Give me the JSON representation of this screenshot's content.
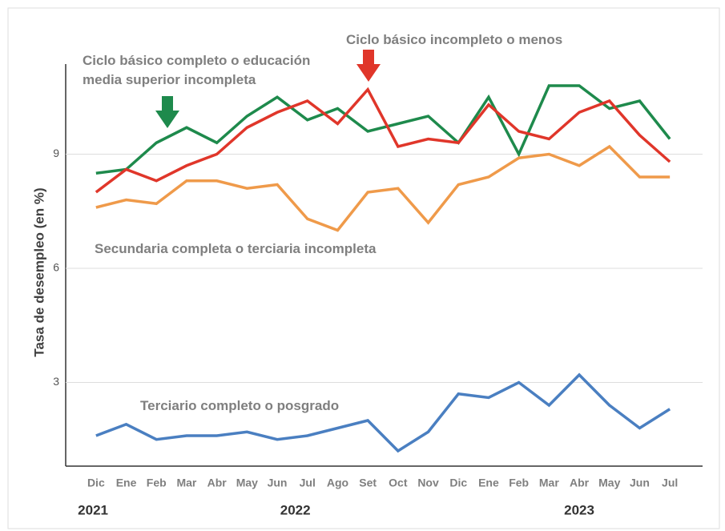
{
  "chart_data": {
    "type": "line",
    "y_label": "Tasa de desempleo (en %)",
    "categories": [
      "Dic",
      "Ene",
      "Feb",
      "Mar",
      "Abr",
      "May",
      "Jun",
      "Jul",
      "Ago",
      "Set",
      "Oct",
      "Nov",
      "Dic",
      "Ene",
      "Feb",
      "Mar",
      "Abr",
      "May",
      "Jun",
      "Jul"
    ],
    "years": [
      "2021",
      "2022",
      "2023"
    ],
    "series": [
      {
        "name": "Ciclo básico completo o educación media superior incompleta",
        "color": "#1e8a4c",
        "values": [
          8.5,
          8.6,
          9.3,
          9.7,
          9.3,
          10.0,
          10.5,
          9.9,
          10.2,
          9.6,
          9.8,
          10.0,
          9.3,
          10.5,
          9.0,
          10.8,
          10.8,
          10.2,
          10.4,
          9.4
        ]
      },
      {
        "name": "Ciclo básico incompleto o menos",
        "color": "#e0362a",
        "values": [
          8.0,
          8.6,
          8.3,
          8.7,
          9.0,
          9.7,
          10.1,
          10.4,
          9.8,
          10.7,
          9.2,
          9.4,
          9.3,
          10.3,
          9.6,
          9.4,
          10.1,
          10.4,
          9.5,
          8.8
        ]
      },
      {
        "name": "Secundaria completa o terciaria incompleta",
        "color": "#ef9a4a",
        "values": [
          7.6,
          7.8,
          7.7,
          8.3,
          8.3,
          8.1,
          8.2,
          7.3,
          7.0,
          8.0,
          8.1,
          7.2,
          8.2,
          8.4,
          8.9,
          9.0,
          8.7,
          9.2,
          8.4,
          8.4
        ]
      },
      {
        "name": "Terciario completo o posgrado",
        "color": "#4a7fc1",
        "values": [
          1.6,
          1.9,
          1.5,
          1.6,
          1.6,
          1.7,
          1.5,
          1.6,
          1.8,
          2.0,
          1.2,
          1.7,
          2.7,
          2.6,
          3.0,
          2.4,
          3.2,
          2.4,
          1.8,
          2.3
        ]
      }
    ],
    "ylim": [
      0.8,
      11.5
    ],
    "yticks": [
      3,
      6,
      9
    ],
    "grid": true
  }
}
